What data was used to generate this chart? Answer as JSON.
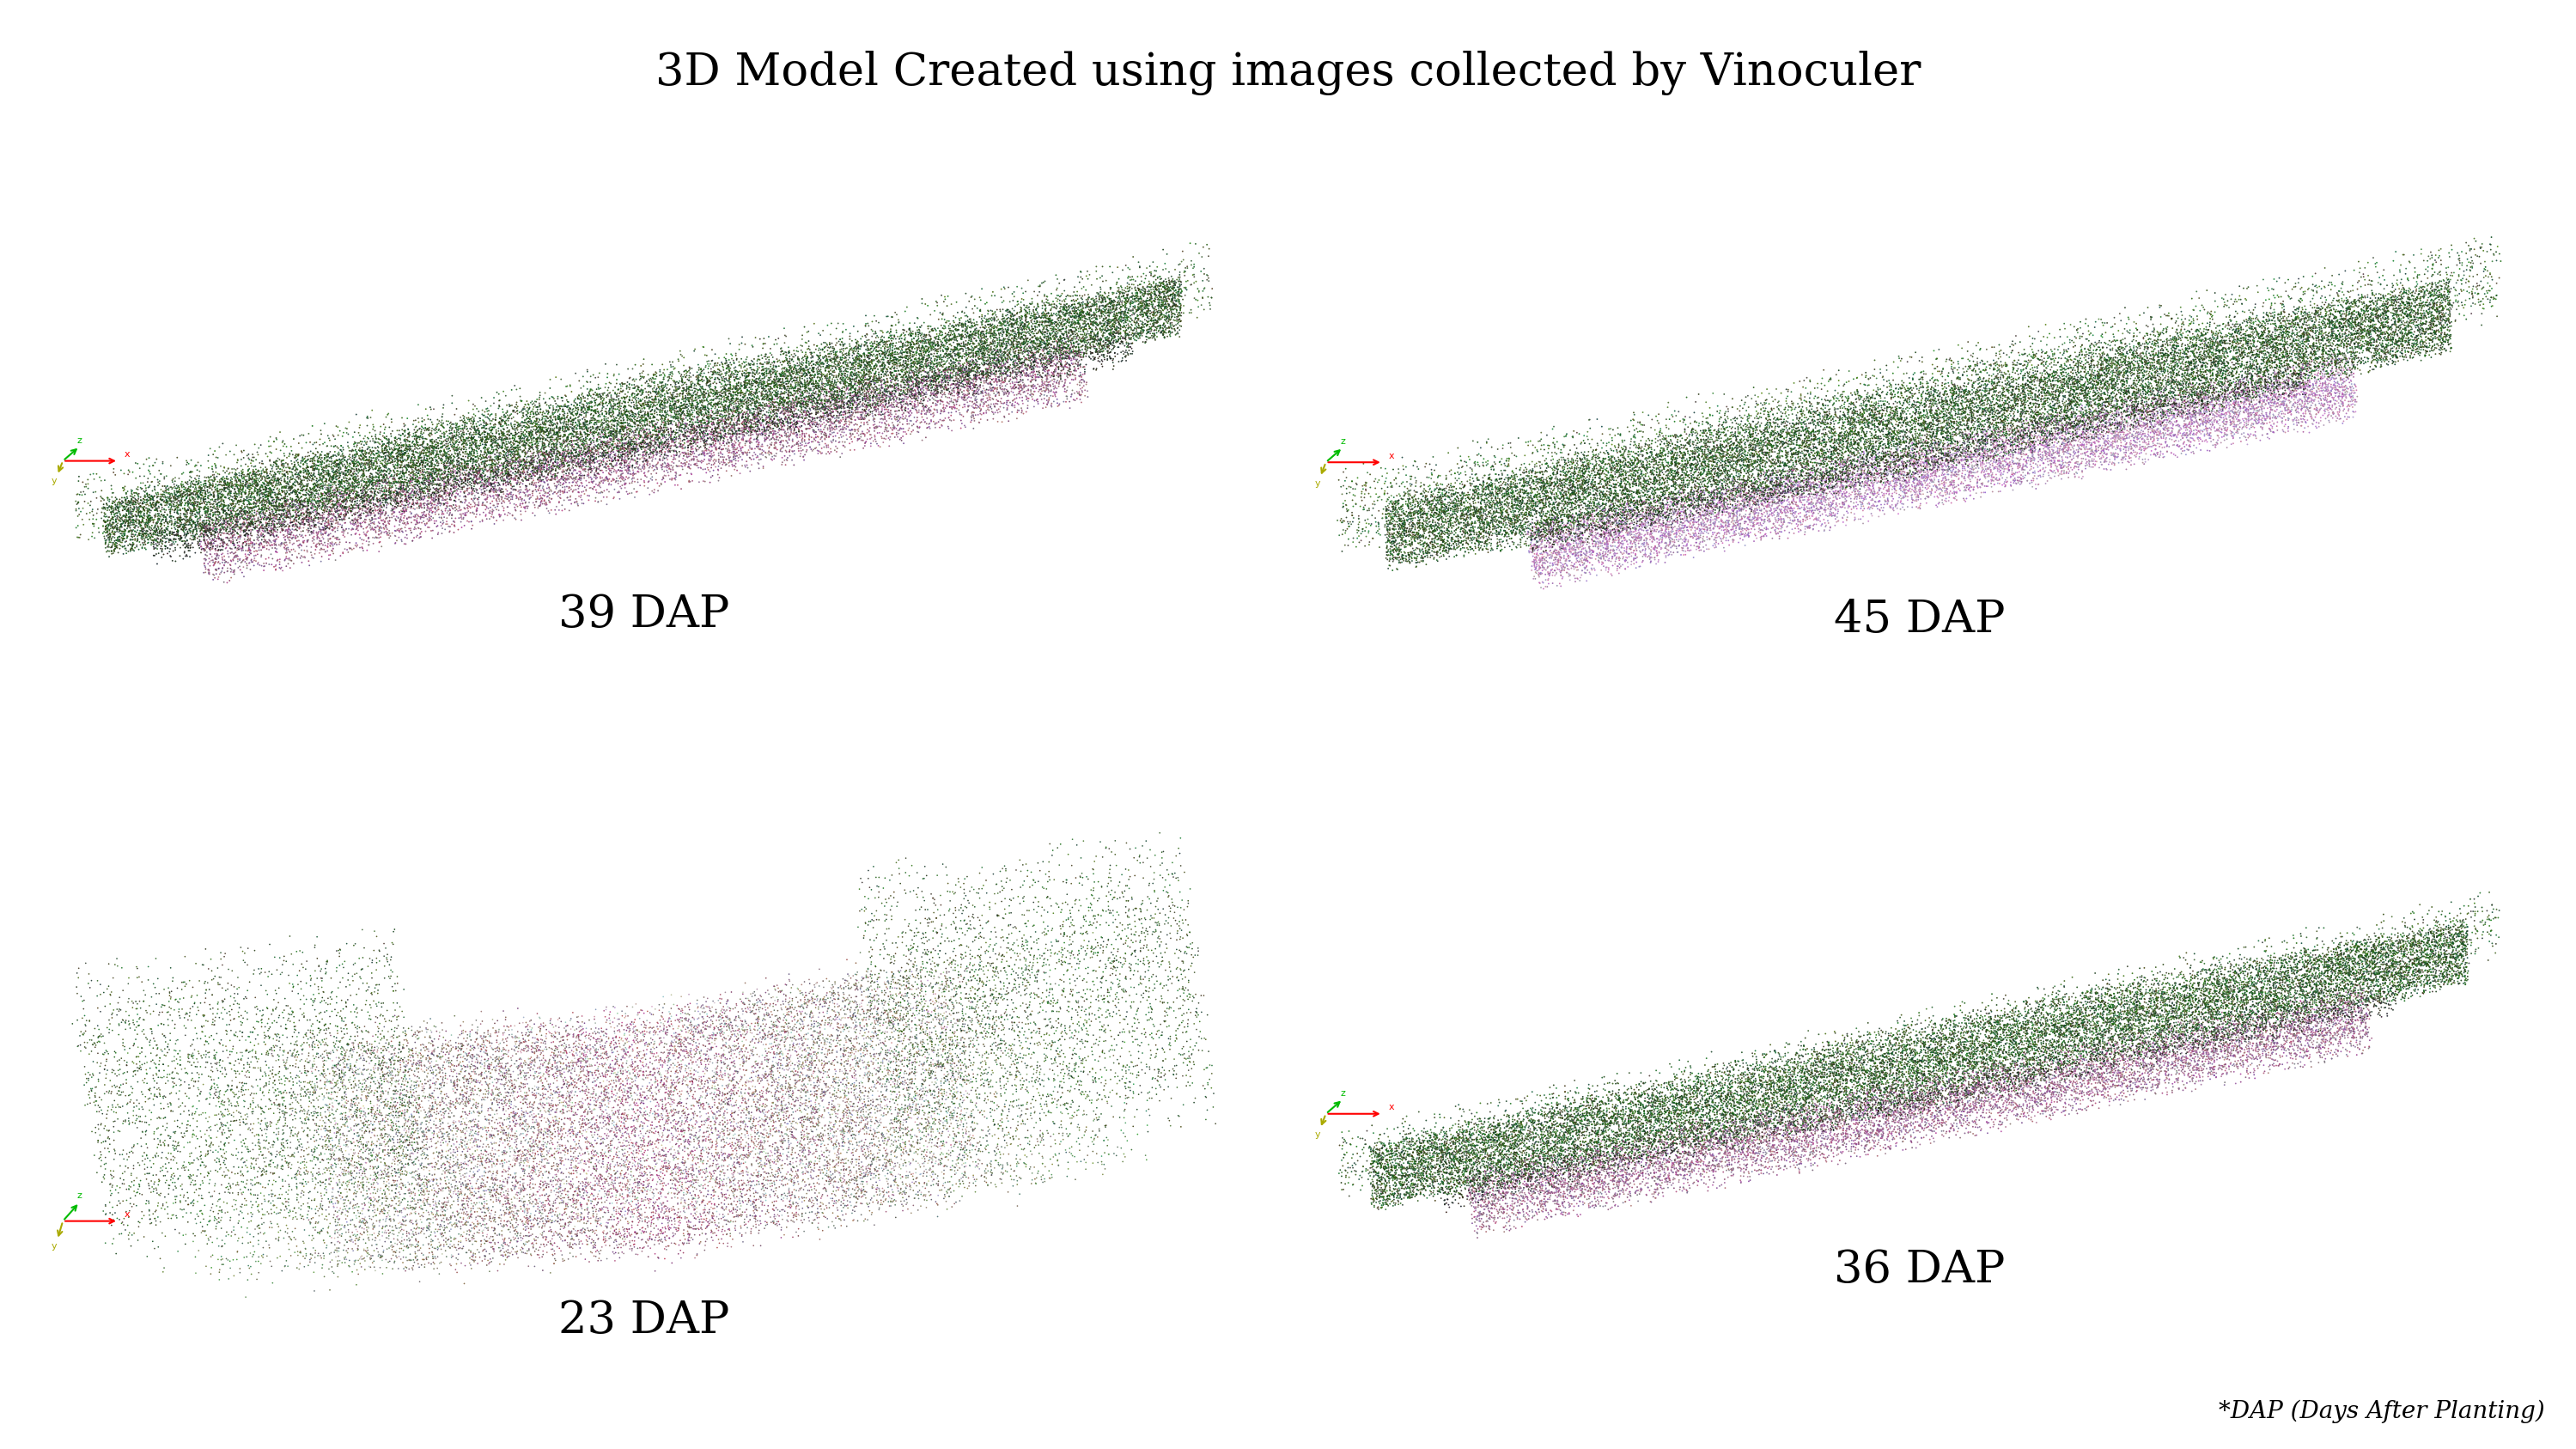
{
  "title": "3D Model Created using images collected by Vinoculer",
  "title_fontsize": 38,
  "footnote": "*DAP (Days After Planting)",
  "footnote_fontsize": 20,
  "background_color": "#ffffff",
  "label_fontsize": 38,
  "panels": [
    {
      "label": "39 DAP",
      "row": 0,
      "col": 0
    },
    {
      "label": "45 DAP",
      "row": 0,
      "col": 1
    },
    {
      "label": "23 DAP",
      "row": 1,
      "col": 0
    },
    {
      "label": "36 DAP",
      "row": 1,
      "col": 1
    }
  ]
}
